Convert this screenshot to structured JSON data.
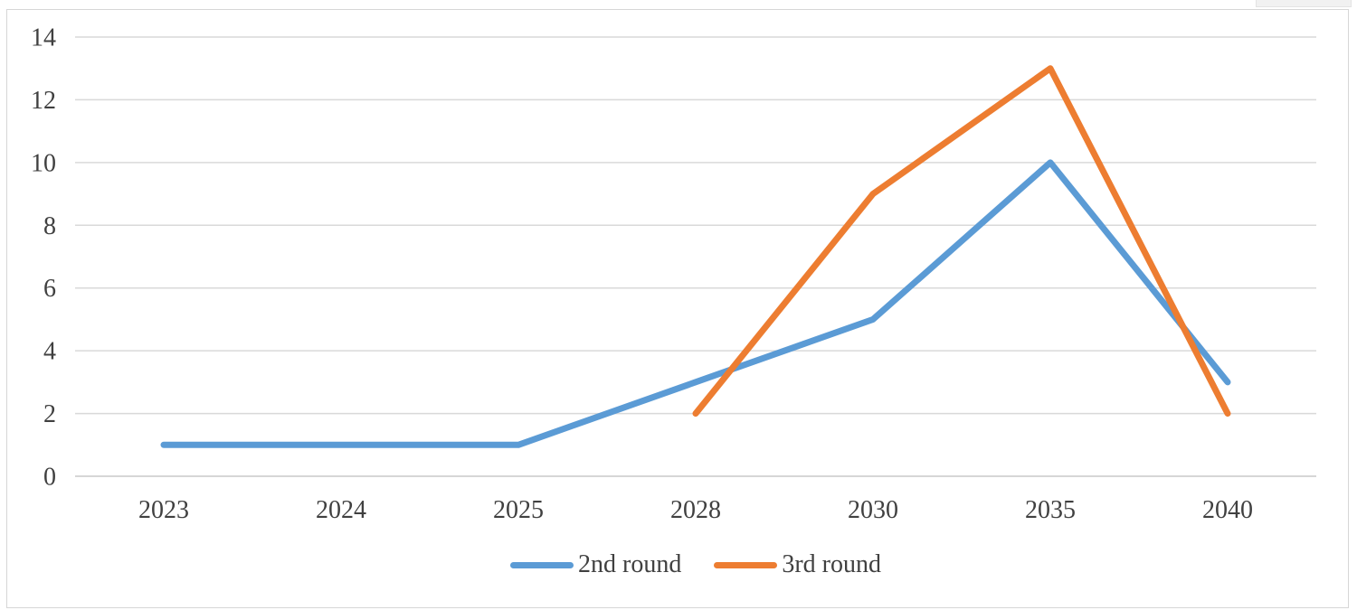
{
  "chart_data": {
    "type": "line",
    "title": "",
    "xlabel": "",
    "ylabel": "",
    "categories": [
      "2023",
      "2024",
      "2025",
      "2028",
      "2030",
      "2035",
      "2040"
    ],
    "series": [
      {
        "name": "2nd round",
        "color": "#5B9BD5",
        "values": [
          1,
          1,
          1,
          3,
          5,
          10,
          3
        ]
      },
      {
        "name": "3rd round",
        "color": "#ED7D31",
        "values": [
          null,
          null,
          null,
          2,
          9,
          13,
          2
        ]
      }
    ],
    "ylim": [
      0,
      14
    ],
    "ytick_step": 2,
    "yticks": [
      "0",
      "2",
      "4",
      "6",
      "8",
      "10",
      "12",
      "14"
    ],
    "grid": true,
    "gridline_color": "#d9d9d9",
    "axis_line_color": "#c9c9c9",
    "tick_label_color": "#404040",
    "legend_position": "bottom"
  }
}
